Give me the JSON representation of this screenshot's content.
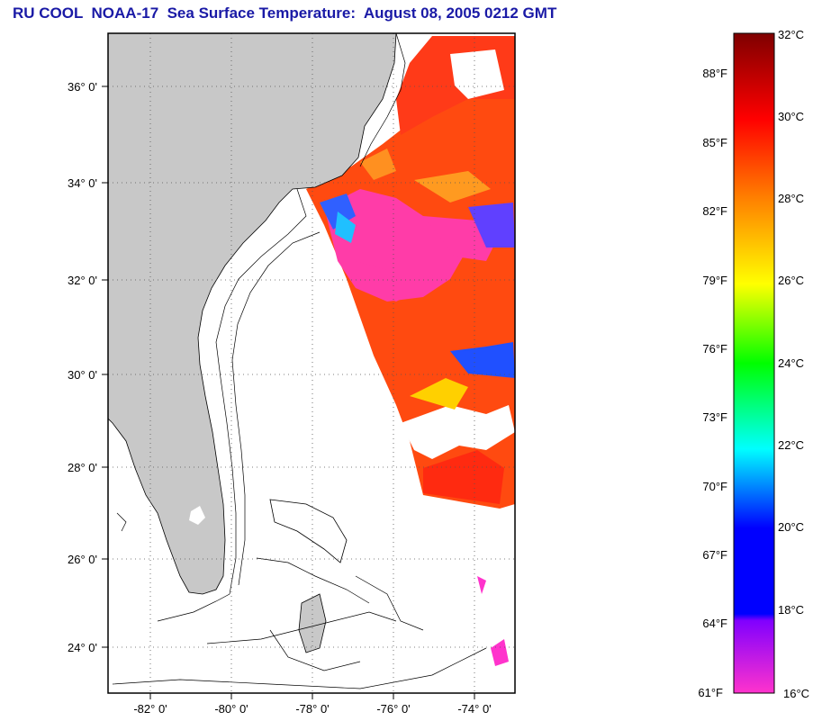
{
  "title": "RU COOL  NOAA-17  Sea Surface Temperature:  August 08, 2005 0212 GMT",
  "map": {
    "lat_labels": [
      "36° 0'",
      "34° 0'",
      "32° 0'",
      "30° 0'",
      "28° 0'",
      "26° 0'",
      "24° 0'"
    ],
    "lon_labels": [
      "-82° 0'",
      "-80° 0'",
      "-78° 0'",
      "-76° 0'",
      "-74° 0'"
    ],
    "lat_range": [
      23.0,
      37.0
    ],
    "lon_range": [
      -83.0,
      -73.0
    ],
    "colors": {
      "land": "#c8c8c8",
      "ocean_nodata": "#ffffff",
      "frame": "#000000"
    }
  },
  "colorbar": {
    "fahrenheit_labels": [
      "88°F",
      "85°F",
      "82°F",
      "79°F",
      "76°F",
      "73°F",
      "70°F",
      "67°F",
      "64°F",
      "61°F"
    ],
    "celsius_labels": [
      "32°C",
      "30°C",
      "28°C",
      "26°C",
      "24°C",
      "22°C",
      "20°C",
      "18°C",
      "16°C"
    ],
    "range_c": [
      16,
      32
    ],
    "stops": [
      "#7f0000",
      "#ff0000",
      "#ff8000",
      "#ffff00",
      "#00ff00",
      "#00ffff",
      "#0000ff",
      "#8000ff",
      "#ff33cc"
    ]
  }
}
